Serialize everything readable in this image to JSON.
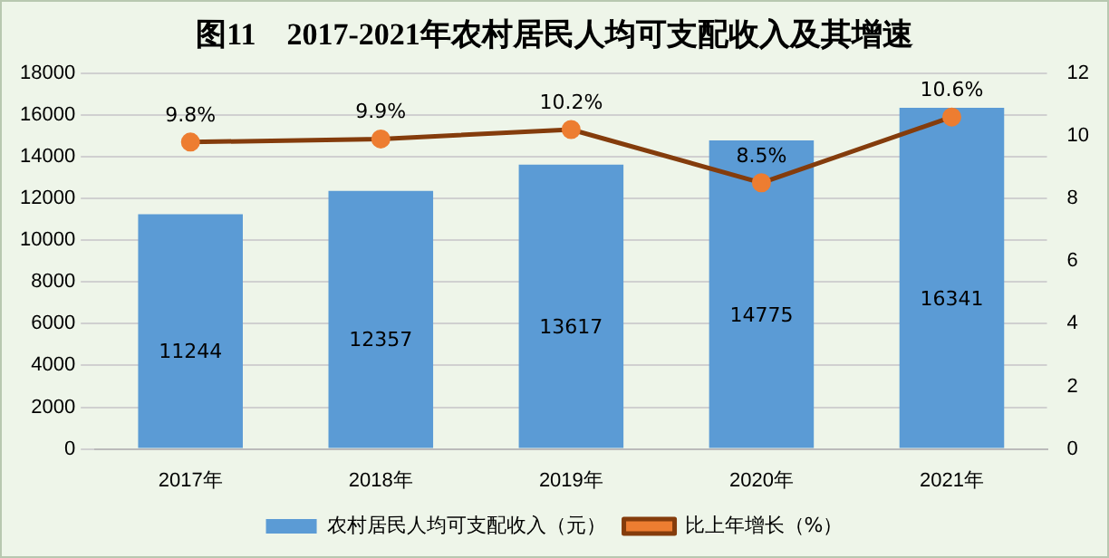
{
  "chart_data": {
    "type": "bar",
    "title": "图11　2017-2021年农村居民人均可支配收入及其增速",
    "categories": [
      "2017年",
      "2018年",
      "2019年",
      "2020年",
      "2021年"
    ],
    "series": [
      {
        "name": "农村居民人均可支配收入（元）",
        "color": "#5b9bd5",
        "values": [
          11244,
          12357,
          13617,
          14775,
          16341
        ],
        "value_labels": [
          "11244",
          "12357",
          "13617",
          "14775",
          "16341"
        ]
      },
      {
        "name": "比上年增长（%）",
        "type": "line",
        "axis": "y2",
        "color": "#843c0c",
        "marker": "circle",
        "values": [
          9.8,
          9.9,
          10.2,
          8.5,
          10.6
        ],
        "value_labels": [
          "9.8%",
          "9.9%",
          "10.2%",
          "8.5%",
          "10.6%"
        ]
      }
    ],
    "ylim": [
      0,
      18000
    ],
    "yticks": [
      0,
      2000,
      4000,
      6000,
      8000,
      10000,
      12000,
      14000,
      16000,
      18000
    ],
    "y2lim": [
      0,
      12
    ],
    "y2ticks": [
      0,
      2,
      4,
      6,
      8,
      10,
      12
    ],
    "grid": "y",
    "legend": "bottom"
  }
}
